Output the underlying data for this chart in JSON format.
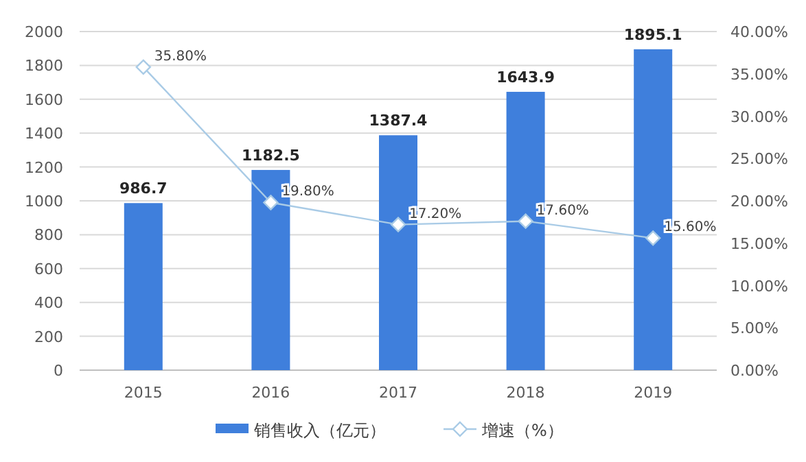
{
  "chart_data": {
    "type": "bar",
    "categories": [
      "2015",
      "2016",
      "2017",
      "2018",
      "2019"
    ],
    "series": [
      {
        "name": "销售收入（亿元）",
        "color": "#3f7fdc",
        "values": [
          986.7,
          1182.5,
          1387.4,
          1643.9,
          1895.1
        ],
        "value_labels": [
          "986.7",
          "1182.5",
          "1387.4",
          "1643.9",
          "1895.1"
        ]
      },
      {
        "name": "增速（%）",
        "type": "line",
        "axis": "y2",
        "color": "#a9cbe6",
        "marker": "diamond",
        "values": [
          35.8,
          19.8,
          17.2,
          17.6,
          15.6
        ],
        "value_labels": [
          "35.80%",
          "19.80%",
          "17.20%",
          "17.60%",
          "15.60%"
        ]
      }
    ],
    "ylim": [
      0,
      2000
    ],
    "yticks": [
      0,
      200,
      400,
      600,
      800,
      1000,
      1200,
      1400,
      1600,
      1800,
      2000
    ],
    "y2lim": [
      0,
      40
    ],
    "y2ticks": [
      {
        "value": 0,
        "label": "0.00%"
      },
      {
        "value": 5,
        "label": "5.00%"
      },
      {
        "value": 10,
        "label": "10.00%"
      },
      {
        "value": 15,
        "label": "15.00%"
      },
      {
        "value": 20,
        "label": "20.00%"
      },
      {
        "value": 25,
        "label": "25.00%"
      },
      {
        "value": 30,
        "label": "30.00%"
      },
      {
        "value": 35,
        "label": "35.00%"
      },
      {
        "value": 40,
        "label": "40.00%"
      }
    ],
    "grid": "y",
    "legend": "bottom"
  }
}
